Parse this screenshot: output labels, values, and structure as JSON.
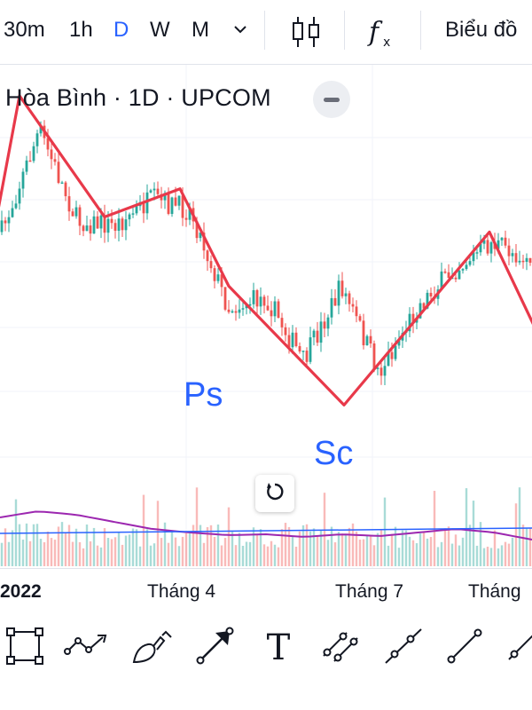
{
  "toolbar_top": {
    "timeframes": [
      {
        "label": "30m",
        "active": false
      },
      {
        "label": "1h",
        "active": false
      },
      {
        "label": "D",
        "active": true
      },
      {
        "label": "W",
        "active": false
      },
      {
        "label": "M",
        "active": false
      }
    ],
    "dropdown_icon": "chevron-down-icon",
    "chart_type_icon": "candlestick-icon",
    "indicators_icon": "fx-icon",
    "chart_label": "Biểu đồ"
  },
  "legend": {
    "symbol": "Hòa Bình · 1D · UPCOM",
    "collapse_icon": "minus-icon"
  },
  "annotations": {
    "ps_label": "Ps",
    "sc_label": "Sc"
  },
  "colors": {
    "up": "#26a69a",
    "down": "#ef5350",
    "trendline": "#e8394a",
    "volume_ma": "#9c27b0",
    "horizontal_line": "#2962ff",
    "accent": "#2962ff"
  },
  "time_axis": {
    "labels": [
      "2022",
      "Tháng 4",
      "Tháng 7",
      "Tháng"
    ]
  },
  "reset_icon": "reset-icon",
  "drawing_tools": [
    {
      "name": "rectangle-tool",
      "icon": "rectangle-icon"
    },
    {
      "name": "path-tool",
      "icon": "path-icon"
    },
    {
      "name": "brush-tool",
      "icon": "brush-icon"
    },
    {
      "name": "arrow-tool",
      "icon": "arrow-icon"
    },
    {
      "name": "text-tool",
      "icon": "text-icon",
      "glyph": "T"
    },
    {
      "name": "parallel-channel-tool",
      "icon": "parallel-channel-icon"
    },
    {
      "name": "ray-tool",
      "icon": "ray-icon"
    },
    {
      "name": "trend-line-tool",
      "icon": "trend-line-icon"
    },
    {
      "name": "extended-line-tool",
      "icon": "extended-line-icon"
    }
  ],
  "chart_data": {
    "type": "candlestick",
    "title": "",
    "xlabel": "",
    "ylabel": "",
    "x_tick_labels": [
      "2022",
      "Tháng 4",
      "Tháng 7",
      "Tháng"
    ],
    "grid": true,
    "trendline_pivots": [
      "start",
      "high",
      "low",
      "high",
      "Ps",
      "Sc",
      "high",
      "end"
    ],
    "trendline_profile": [
      0.28,
      0.98,
      0.42,
      0.55,
      0.1,
      -0.45,
      0.35,
      -0.15
    ],
    "candle_profile": [
      0.35,
      0.82,
      0.4,
      0.38,
      0.5,
      0.45,
      0.0,
      0.05,
      -0.25,
      0.1,
      -0.3,
      0.0,
      0.18,
      0.3,
      0.22
    ],
    "volume_ma_profile": [
      0.55,
      0.62,
      0.58,
      0.5,
      0.42,
      0.38,
      0.35,
      0.36,
      0.33,
      0.36,
      0.34,
      0.38,
      0.42,
      0.38,
      0.3
    ]
  }
}
